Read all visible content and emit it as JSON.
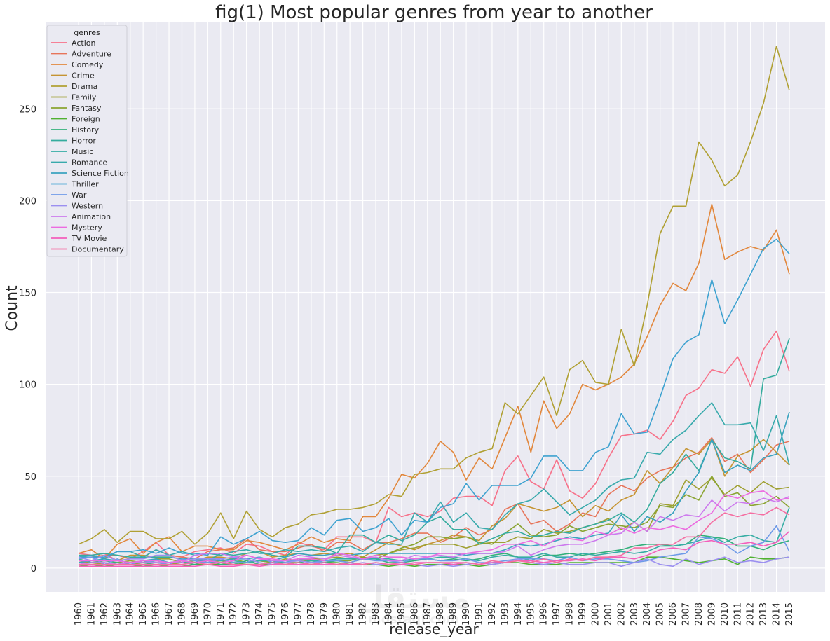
{
  "chart_data": {
    "type": "line",
    "title": "fig(1) Most popular genres from year to another",
    "xlabel": "release_year",
    "ylabel": "Count",
    "ylim": [
      -13,
      297
    ],
    "yticks": [
      0,
      50,
      100,
      150,
      200,
      250
    ],
    "grid": true,
    "legend": {
      "title": "genres",
      "placement": "top-left"
    },
    "x": [
      1960,
      1961,
      1962,
      1963,
      1964,
      1965,
      1966,
      1967,
      1968,
      1969,
      1970,
      1971,
      1972,
      1973,
      1974,
      1975,
      1976,
      1977,
      1978,
      1979,
      1980,
      1981,
      1982,
      1983,
      1984,
      1985,
      1986,
      1987,
      1988,
      1989,
      1990,
      1991,
      1992,
      1993,
      1994,
      1995,
      1996,
      1997,
      1998,
      1999,
      2000,
      2001,
      2002,
      2003,
      2004,
      2005,
      2006,
      2007,
      2008,
      2009,
      2010,
      2011,
      2012,
      2013,
      2014,
      2015
    ],
    "series": [
      {
        "name": "Action",
        "color": "#f77189",
        "values": [
          8,
          7,
          8,
          4,
          5,
          9,
          14,
          7,
          6,
          9,
          10,
          11,
          8,
          13,
          12,
          9,
          7,
          14,
          12,
          10,
          17,
          17,
          17,
          14,
          33,
          28,
          30,
          28,
          31,
          38,
          39,
          39,
          34,
          53,
          61,
          47,
          43,
          59,
          42,
          38,
          46,
          60,
          72,
          73,
          75,
          70,
          80,
          94,
          98,
          108,
          106,
          115,
          99,
          119,
          129,
          107
        ]
      },
      {
        "name": "Adventure",
        "color": "#e7755a",
        "values": [
          5,
          6,
          7,
          7,
          5,
          6,
          10,
          7,
          6,
          5,
          9,
          10,
          11,
          16,
          10,
          9,
          9,
          11,
          13,
          9,
          14,
          14,
          10,
          14,
          14,
          16,
          19,
          19,
          14,
          17,
          22,
          18,
          21,
          32,
          35,
          24,
          26,
          20,
          24,
          30,
          28,
          40,
          45,
          42,
          49,
          53,
          55,
          60,
          63,
          71,
          58,
          62,
          52,
          59,
          67,
          69
        ]
      },
      {
        "name": "Comedy",
        "color": "#e2873c",
        "values": [
          8,
          10,
          5,
          13,
          16,
          8,
          14,
          17,
          9,
          12,
          12,
          10,
          10,
          15,
          14,
          12,
          10,
          13,
          17,
          14,
          16,
          15,
          28,
          28,
          38,
          51,
          49,
          57,
          69,
          63,
          48,
          60,
          54,
          71,
          88,
          63,
          91,
          76,
          84,
          100,
          97,
          100,
          104,
          111,
          126,
          143,
          155,
          151,
          166,
          198,
          168,
          172,
          175,
          173,
          184,
          160
        ]
      },
      {
        "name": "Crime",
        "color": "#c59432",
        "values": [
          3,
          3,
          4,
          4,
          7,
          7,
          6,
          6,
          5,
          4,
          6,
          6,
          5,
          8,
          9,
          6,
          7,
          8,
          7,
          8,
          7,
          8,
          6,
          10,
          14,
          12,
          10,
          13,
          15,
          18,
          17,
          15,
          23,
          27,
          35,
          33,
          31,
          33,
          37,
          28,
          34,
          31,
          37,
          40,
          53,
          46,
          55,
          65,
          62,
          70,
          50,
          61,
          64,
          70,
          63,
          56
        ]
      },
      {
        "name": "Drama",
        "color": "#b0a033",
        "values": [
          13,
          16,
          21,
          14,
          20,
          20,
          16,
          16,
          20,
          13,
          19,
          30,
          16,
          31,
          21,
          17,
          22,
          24,
          29,
          30,
          32,
          32,
          33,
          35,
          40,
          39,
          51,
          52,
          54,
          54,
          60,
          63,
          65,
          90,
          84,
          94,
          104,
          83,
          108,
          113,
          101,
          100,
          130,
          110,
          143,
          182,
          197,
          197,
          232,
          222,
          208,
          214,
          232,
          253,
          284,
          260
        ]
      },
      {
        "name": "Family",
        "color": "#9fa032",
        "values": [
          4,
          3,
          2,
          3,
          4,
          3,
          5,
          5,
          3,
          4,
          4,
          4,
          5,
          3,
          4,
          3,
          5,
          4,
          5,
          5,
          6,
          5,
          5,
          7,
          8,
          10,
          11,
          13,
          13,
          13,
          11,
          13,
          14,
          14,
          17,
          16,
          21,
          19,
          20,
          22,
          24,
          27,
          21,
          25,
          20,
          35,
          34,
          48,
          43,
          49,
          40,
          45,
          41,
          47,
          43,
          44
        ]
      },
      {
        "name": "Fantasy",
        "color": "#8aa431",
        "values": [
          2,
          2,
          2,
          3,
          2,
          3,
          3,
          2,
          3,
          3,
          3,
          4,
          3,
          3,
          4,
          3,
          3,
          3,
          5,
          4,
          4,
          4,
          6,
          5,
          8,
          11,
          13,
          17,
          17,
          16,
          17,
          14,
          13,
          19,
          24,
          18,
          17,
          18,
          23,
          20,
          22,
          24,
          23,
          22,
          25,
          34,
          33,
          40,
          37,
          50,
          39,
          41,
          34,
          35,
          39,
          33
        ]
      },
      {
        "name": "Foreign",
        "color": "#50b131",
        "values": [
          1,
          2,
          1,
          2,
          2,
          1,
          2,
          1,
          1,
          2,
          2,
          2,
          3,
          2,
          2,
          2,
          2,
          3,
          2,
          3,
          3,
          2,
          2,
          2,
          1,
          2,
          1,
          2,
          2,
          2,
          2,
          1,
          2,
          3,
          3,
          2,
          2,
          2,
          3,
          3,
          3,
          3,
          3,
          3,
          6,
          6,
          5,
          4,
          3,
          4,
          5,
          2,
          6,
          5,
          5,
          6
        ]
      },
      {
        "name": "History",
        "color": "#33b07a",
        "values": [
          5,
          3,
          4,
          3,
          2,
          2,
          3,
          3,
          3,
          2,
          4,
          2,
          2,
          4,
          2,
          3,
          2,
          3,
          4,
          3,
          4,
          3,
          5,
          5,
          3,
          3,
          4,
          5,
          4,
          5,
          4,
          5,
          7,
          8,
          6,
          4,
          7,
          7,
          8,
          7,
          8,
          9,
          10,
          12,
          13,
          13,
          12,
          13,
          18,
          17,
          16,
          12,
          12,
          10,
          13,
          15
        ]
      },
      {
        "name": "Horror",
        "color": "#35ac9e",
        "values": [
          7,
          7,
          8,
          7,
          6,
          6,
          6,
          6,
          5,
          5,
          4,
          8,
          7,
          8,
          9,
          7,
          6,
          12,
          12,
          11,
          8,
          18,
          18,
          14,
          18,
          15,
          18,
          25,
          28,
          21,
          21,
          13,
          16,
          19,
          20,
          17,
          18,
          20,
          19,
          22,
          24,
          26,
          30,
          25,
          32,
          46,
          52,
          62,
          53,
          70,
          60,
          58,
          54,
          103,
          105,
          125
        ]
      },
      {
        "name": "Music",
        "color": "#36ada4",
        "values": [
          2,
          3,
          3,
          2,
          3,
          3,
          4,
          3,
          3,
          3,
          3,
          3,
          4,
          3,
          4,
          4,
          3,
          5,
          4,
          4,
          5,
          5,
          5,
          5,
          5,
          4,
          5,
          5,
          6,
          6,
          5,
          4,
          6,
          7,
          6,
          6,
          8,
          6,
          6,
          8,
          7,
          8,
          9,
          8,
          9,
          12,
          12,
          13,
          15,
          17,
          14,
          17,
          18,
          15,
          14,
          33
        ]
      },
      {
        "name": "Romance",
        "color": "#38aaac",
        "values": [
          6,
          7,
          5,
          9,
          9,
          6,
          10,
          7,
          9,
          7,
          8,
          7,
          9,
          10,
          8,
          8,
          10,
          9,
          10,
          9,
          11,
          12,
          9,
          14,
          13,
          13,
          30,
          25,
          36,
          25,
          30,
          22,
          21,
          29,
          35,
          37,
          43,
          36,
          29,
          33,
          37,
          44,
          48,
          49,
          63,
          62,
          70,
          75,
          83,
          90,
          78,
          78,
          79,
          64,
          83,
          56
        ]
      },
      {
        "name": "Science Fiction",
        "color": "#3ba3bf",
        "values": [
          3,
          4,
          5,
          4,
          3,
          4,
          5,
          3,
          4,
          3,
          5,
          4,
          5,
          5,
          6,
          4,
          6,
          8,
          7,
          7,
          8,
          7,
          8,
          8,
          8,
          8,
          8,
          8,
          8,
          8,
          7,
          8,
          8,
          10,
          13,
          12,
          13,
          15,
          17,
          16,
          18,
          19,
          29,
          20,
          28,
          25,
          30,
          42,
          52,
          70,
          52,
          56,
          53,
          60,
          62,
          85
        ]
      },
      {
        "name": "Thriller",
        "color": "#3ea2d0",
        "values": [
          6,
          6,
          6,
          9,
          9,
          10,
          8,
          11,
          8,
          8,
          7,
          17,
          13,
          16,
          20,
          15,
          14,
          15,
          22,
          18,
          26,
          27,
          20,
          22,
          27,
          18,
          26,
          25,
          33,
          35,
          46,
          37,
          45,
          45,
          45,
          49,
          61,
          61,
          53,
          53,
          63,
          66,
          84,
          73,
          74,
          93,
          114,
          123,
          127,
          157,
          133,
          146,
          160,
          174,
          179,
          171
        ]
      },
      {
        "name": "War",
        "color": "#6e9ae8",
        "values": [
          5,
          6,
          2,
          5,
          2,
          4,
          3,
          2,
          5,
          4,
          3,
          5,
          3,
          3,
          6,
          3,
          4,
          4,
          3,
          4,
          4,
          3,
          5,
          4,
          4,
          3,
          5,
          5,
          4,
          4,
          5,
          3,
          3,
          4,
          5,
          5,
          5,
          4,
          6,
          4,
          5,
          5,
          4,
          3,
          4,
          6,
          7,
          8,
          17,
          16,
          13,
          8,
          12,
          14,
          23,
          9
        ]
      },
      {
        "name": "Western",
        "color": "#9b8ff0",
        "values": [
          6,
          4,
          7,
          4,
          5,
          5,
          7,
          7,
          4,
          5,
          5,
          5,
          6,
          5,
          3,
          2,
          3,
          4,
          3,
          3,
          2,
          2,
          3,
          2,
          2,
          2,
          2,
          1,
          2,
          1,
          2,
          3,
          2,
          3,
          5,
          3,
          2,
          3,
          2,
          2,
          3,
          3,
          1,
          3,
          5,
          2,
          1,
          5,
          2,
          4,
          6,
          3,
          4,
          3,
          5,
          6
        ]
      },
      {
        "name": "Animation",
        "color": "#cd7aee",
        "values": [
          2,
          3,
          3,
          2,
          3,
          3,
          3,
          3,
          3,
          7,
          8,
          8,
          6,
          7,
          5,
          4,
          4,
          7,
          6,
          5,
          7,
          6,
          5,
          6,
          4,
          4,
          7,
          6,
          7,
          6,
          8,
          8,
          8,
          9,
          12,
          7,
          10,
          12,
          13,
          13,
          15,
          18,
          19,
          25,
          20,
          28,
          26,
          29,
          28,
          37,
          31,
          36,
          35,
          38,
          36,
          39
        ]
      },
      {
        "name": "Mystery",
        "color": "#ec6ce0",
        "values": [
          4,
          4,
          4,
          4,
          3,
          4,
          4,
          3,
          4,
          3,
          4,
          3,
          4,
          7,
          5,
          5,
          4,
          5,
          5,
          4,
          8,
          7,
          5,
          7,
          6,
          6,
          5,
          6,
          8,
          8,
          8,
          9,
          10,
          13,
          13,
          15,
          12,
          16,
          16,
          15,
          20,
          18,
          22,
          19,
          22,
          21,
          23,
          21,
          26,
          30,
          40,
          38,
          41,
          42,
          37,
          38
        ]
      },
      {
        "name": "TV Movie",
        "color": "#f35fbb",
        "values": [
          1,
          1,
          1,
          1,
          1,
          1,
          1,
          1,
          1,
          1,
          2,
          1,
          1,
          2,
          1,
          2,
          2,
          2,
          2,
          2,
          2,
          2,
          2,
          3,
          2,
          2,
          3,
          3,
          3,
          2,
          3,
          2,
          3,
          3,
          4,
          4,
          3,
          4,
          4,
          5,
          4,
          6,
          6,
          5,
          7,
          10,
          11,
          10,
          14,
          15,
          13,
          13,
          14,
          12,
          14,
          20
        ]
      },
      {
        "name": "Documentary",
        "color": "#f56da1",
        "values": [
          2,
          2,
          2,
          2,
          2,
          2,
          2,
          2,
          2,
          3,
          2,
          3,
          2,
          2,
          2,
          3,
          2,
          3,
          2,
          3,
          2,
          3,
          2,
          3,
          2,
          3,
          2,
          3,
          3,
          3,
          3,
          2,
          4,
          3,
          4,
          3,
          5,
          3,
          5,
          4,
          6,
          6,
          7,
          11,
          11,
          13,
          13,
          17,
          17,
          25,
          30,
          28,
          30,
          29,
          33,
          29
        ]
      }
    ]
  },
  "watermark": {
    "main": "مستقل",
    "sub": "mostaql.com"
  }
}
